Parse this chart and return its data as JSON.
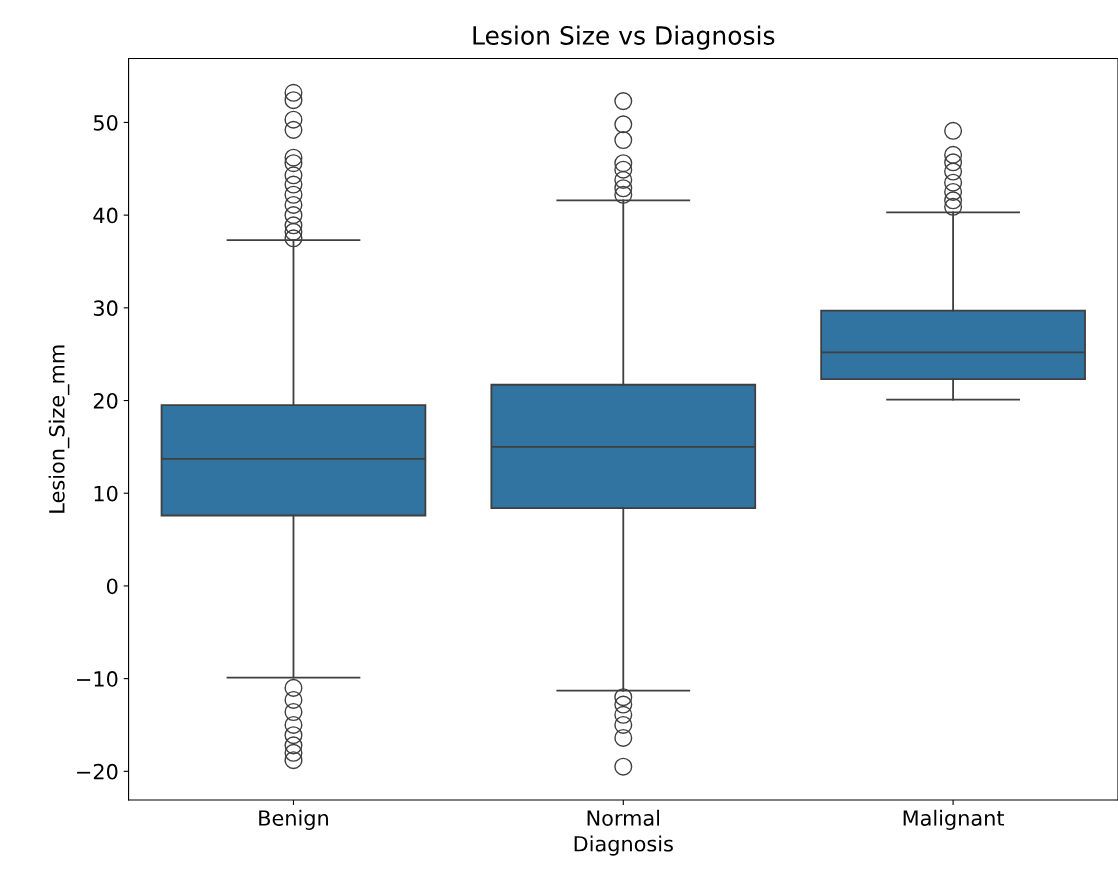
{
  "chart_data": {
    "type": "box",
    "title": "Lesion Size vs Diagnosis",
    "xlabel": "Diagnosis",
    "ylabel": "Lesion_Size_mm",
    "categories": [
      "Benign",
      "Normal",
      "Malignant"
    ],
    "color": "#3274a1",
    "ylim": [
      -23.1,
      56.9
    ],
    "yticks": [
      -20,
      -10,
      0,
      10,
      20,
      30,
      40,
      50
    ],
    "grid": false,
    "boxes": [
      {
        "low": -9.9,
        "q1": 7.6,
        "median": 13.7,
        "q3": 19.5,
        "high": 37.3,
        "outliers": [
          53.2,
          52.4,
          50.3,
          49.2,
          46.2,
          45.6,
          44.3,
          43.3,
          42.2,
          41.1,
          40.0,
          38.9,
          38.2,
          37.5,
          -11.0,
          -12.3,
          -13.6,
          -15.0,
          -16.1,
          -17.2,
          -18.0,
          -18.8
        ]
      },
      {
        "low": -11.3,
        "q1": 8.4,
        "median": 15.0,
        "q3": 21.7,
        "high": 41.6,
        "outliers": [
          52.3,
          49.8,
          48.1,
          45.6,
          44.9,
          43.8,
          42.9,
          42.2,
          -12.0,
          -12.8,
          -13.9,
          -15.0,
          -16.4,
          -19.5
        ]
      },
      {
        "low": 20.1,
        "q1": 22.3,
        "median": 25.2,
        "q3": 29.7,
        "high": 40.3,
        "outliers": [
          49.1,
          46.5,
          45.7,
          44.7,
          43.5,
          42.5,
          41.6,
          40.9
        ]
      }
    ]
  }
}
